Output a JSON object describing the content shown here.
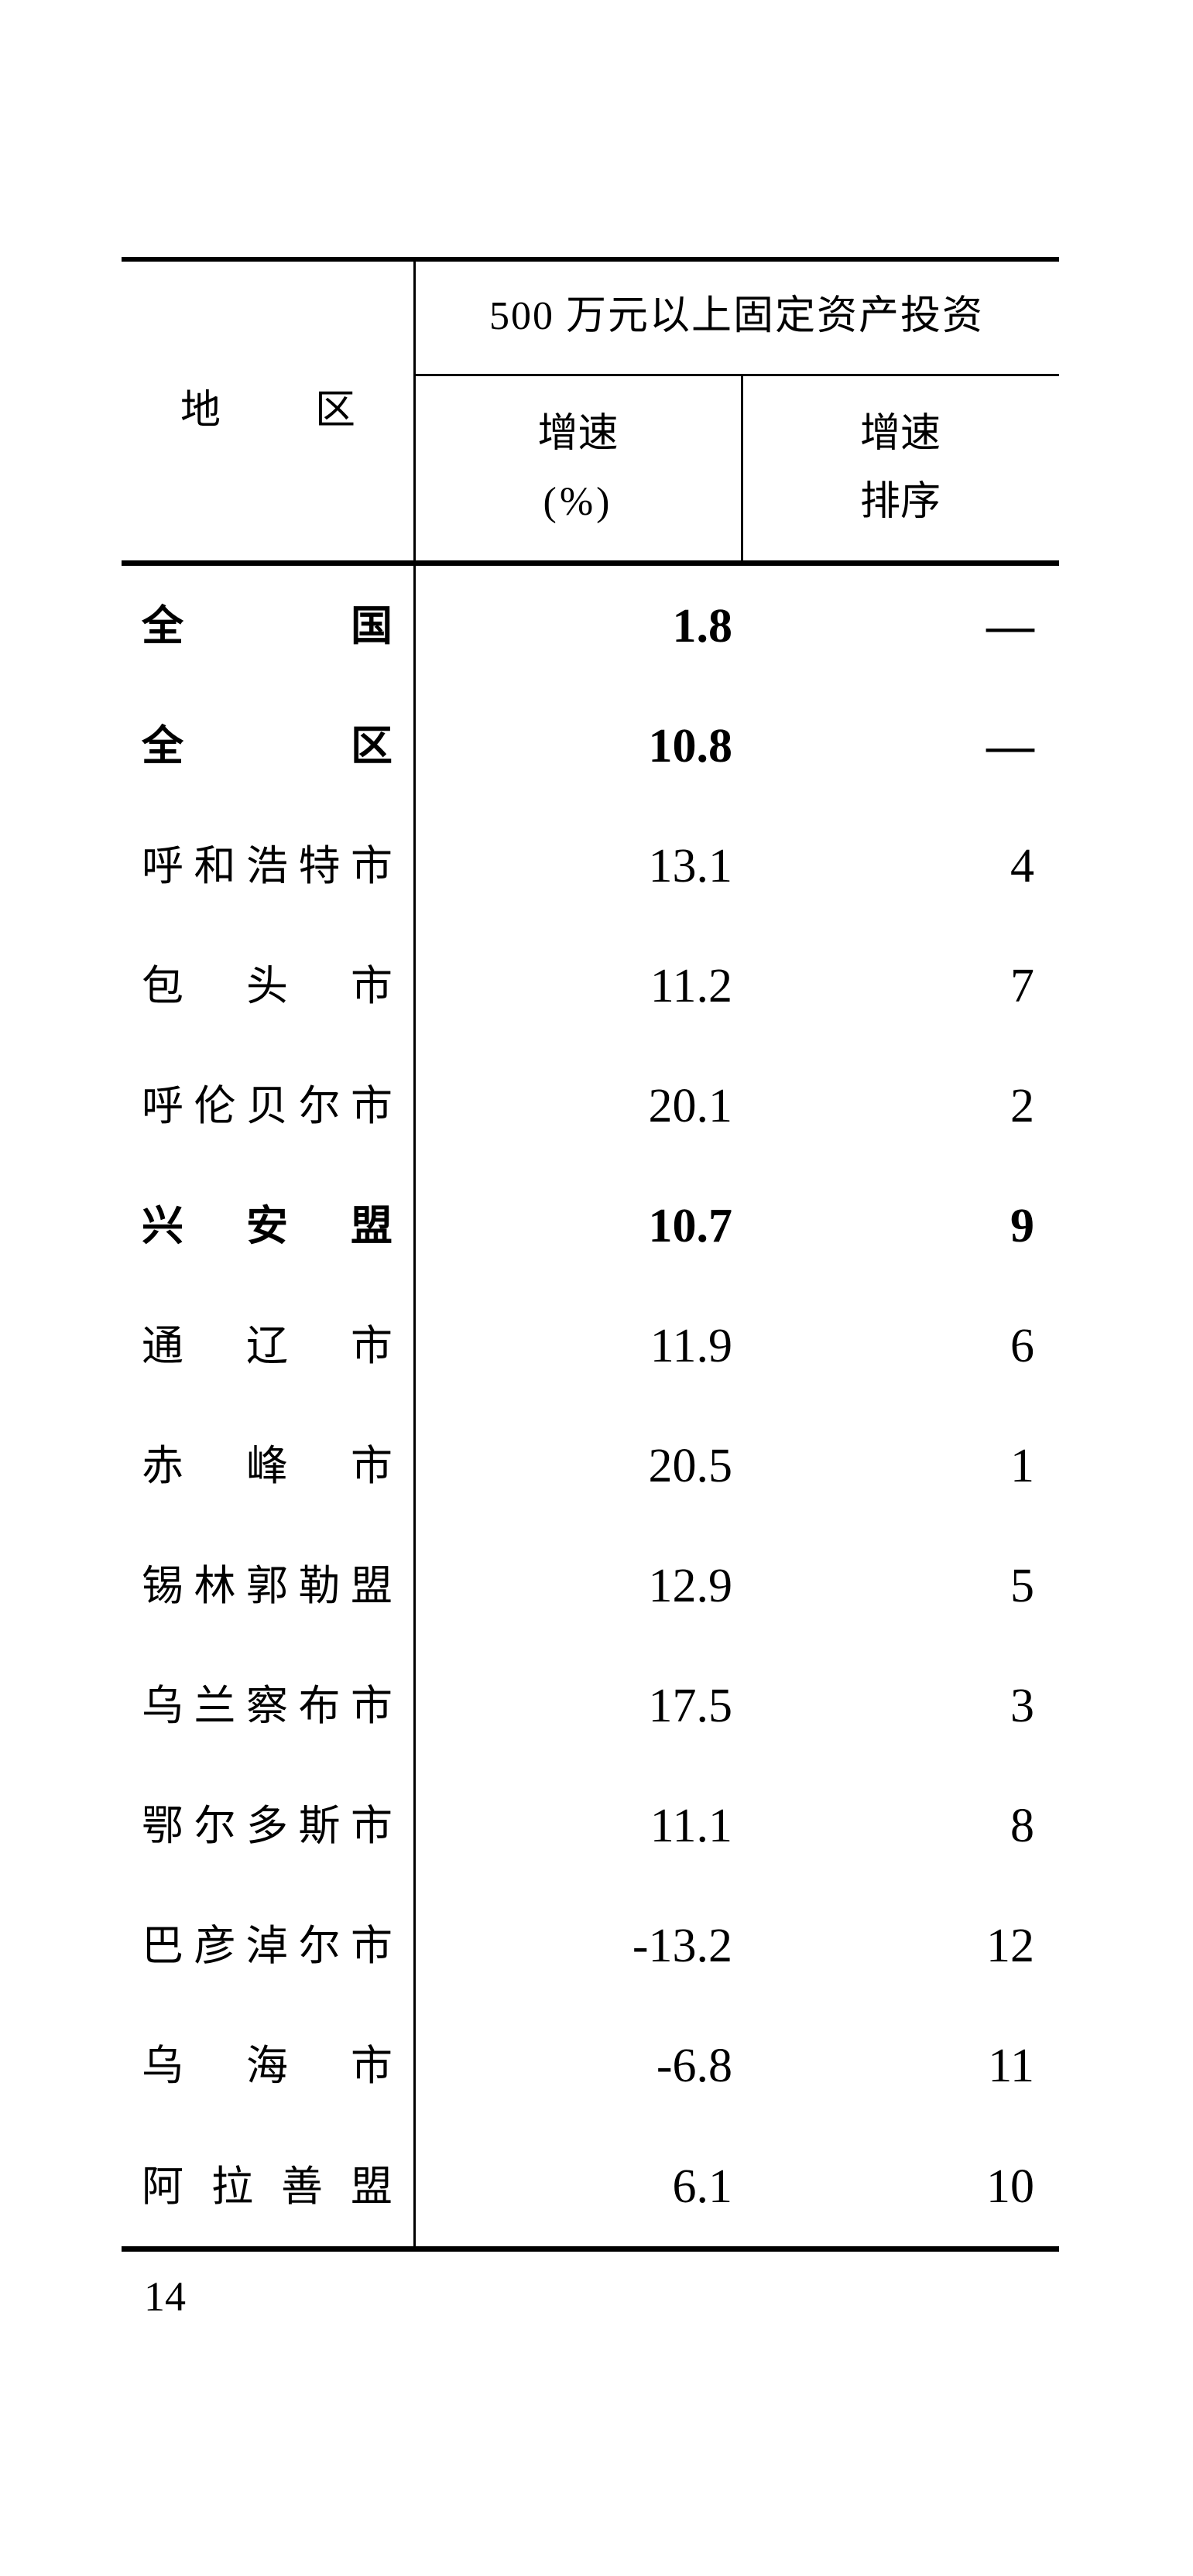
{
  "page": {
    "number": "14",
    "background_color": "#ffffff",
    "ink_color": "#000000"
  },
  "table": {
    "region_header": "地区",
    "span_header": "500 万元以上固定资产投资",
    "col_growth": {
      "line1": "增速",
      "line2": "(%)"
    },
    "col_rank": {
      "line1": "增速",
      "line2": "排序"
    },
    "rows": [
      {
        "region": "全国",
        "growth": "1.8",
        "rank": "—",
        "emphasis": true
      },
      {
        "region": "全区",
        "growth": "10.8",
        "rank": "—",
        "emphasis": true
      },
      {
        "region": "呼和浩特市",
        "growth": "13.1",
        "rank": "4",
        "emphasis": false
      },
      {
        "region": "包头市",
        "growth": "11.2",
        "rank": "7",
        "emphasis": false
      },
      {
        "region": "呼伦贝尔市",
        "growth": "20.1",
        "rank": "2",
        "emphasis": false
      },
      {
        "region": "兴安盟",
        "growth": "10.7",
        "rank": "9",
        "emphasis": true
      },
      {
        "region": "通辽市",
        "growth": "11.9",
        "rank": "6",
        "emphasis": false
      },
      {
        "region": "赤峰市",
        "growth": "20.5",
        "rank": "1",
        "emphasis": false
      },
      {
        "region": "锡林郭勒盟",
        "growth": "12.9",
        "rank": "5",
        "emphasis": false
      },
      {
        "region": "乌兰察布市",
        "growth": "17.5",
        "rank": "3",
        "emphasis": false
      },
      {
        "region": "鄂尔多斯市",
        "growth": "11.1",
        "rank": "8",
        "emphasis": false
      },
      {
        "region": "巴彦淖尔市",
        "growth": "-13.2",
        "rank": "12",
        "emphasis": false
      },
      {
        "region": "乌海市",
        "growth": "-6.8",
        "rank": "11",
        "emphasis": false
      },
      {
        "region": "阿拉善盟",
        "growth": "6.1",
        "rank": "10",
        "emphasis": false
      }
    ]
  }
}
